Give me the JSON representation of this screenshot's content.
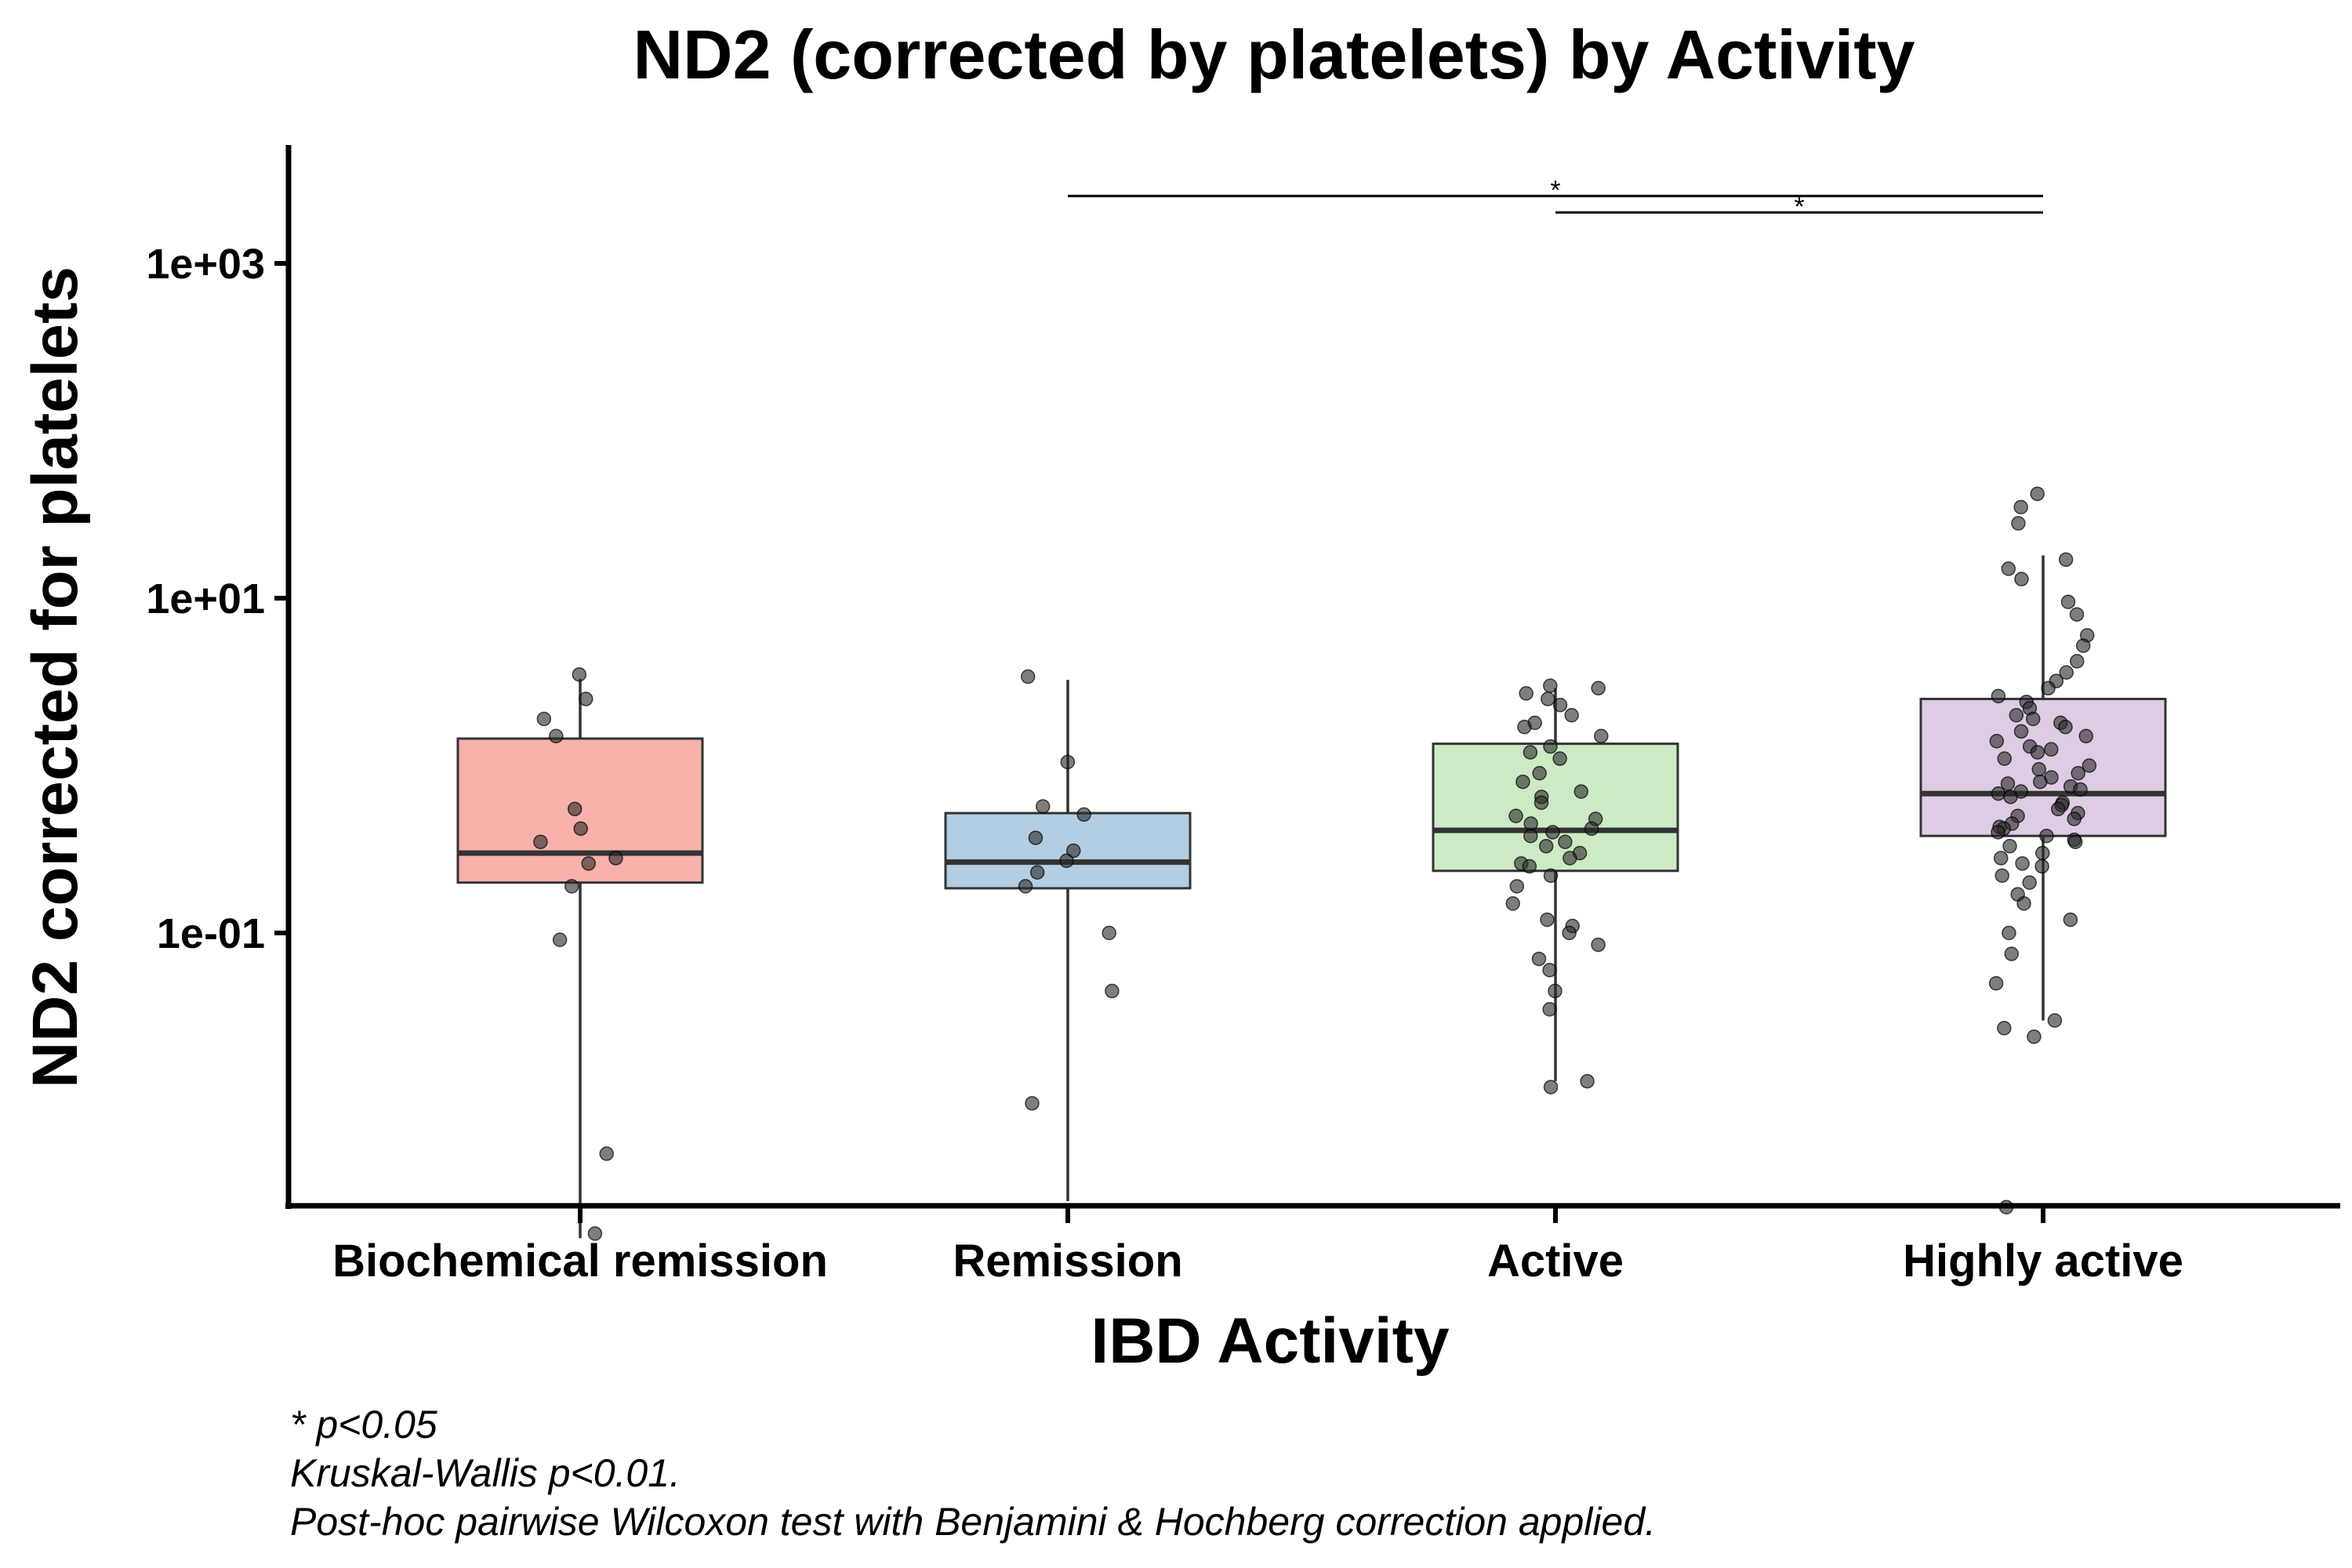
{
  "chart_data": {
    "type": "box",
    "title": "ND2 (corrected by platelets) by Activity",
    "xlabel": "IBD Activity",
    "ylabel": "ND2 corrected for platelets",
    "y_scale": "log10",
    "ylim": [
      0.0004,
      5000
    ],
    "y_ticks": [
      0.1,
      10,
      1000
    ],
    "y_tick_labels": [
      "1e-01",
      "1e+01",
      "1e+03"
    ],
    "grid": false,
    "legend": "none",
    "categories": [
      "Biochemical remission",
      "Remission",
      "Active",
      "Highly active"
    ],
    "colors": [
      "#f8b1ab",
      "#b3cde3",
      "#ccebc5",
      "#decbe4"
    ],
    "series": [
      {
        "box": {
          "whisker_low": 0.0015,
          "q1": 0.2,
          "median": 0.3,
          "q3": 1.45,
          "whisker_high": 3.3
        },
        "points": [
          3.5,
          2.5,
          1.9,
          1.5,
          0.55,
          0.42,
          0.35,
          0.28,
          0.26,
          0.19,
          0.091,
          0.0048,
          0.0016
        ]
      },
      {
        "box": {
          "whisker_low": 0.0025,
          "q1": 0.185,
          "median": 0.265,
          "q3": 0.52,
          "whisker_high": 3.25
        },
        "points": [
          3.4,
          1.05,
          0.57,
          0.51,
          0.37,
          0.31,
          0.27,
          0.23,
          0.19,
          0.1,
          0.045,
          0.0096
        ]
      },
      {
        "box": {
          "whisker_low": 0.013,
          "q1": 0.235,
          "median": 0.41,
          "q3": 1.35,
          "whisker_high": 2.9
        },
        "points": [
          3.0,
          2.9,
          2.7,
          2.5,
          2.3,
          2.0,
          1.8,
          1.7,
          1.5,
          1.3,
          1.2,
          1.1,
          0.9,
          0.8,
          0.7,
          0.65,
          0.6,
          0.5,
          0.48,
          0.45,
          0.42,
          0.4,
          0.38,
          0.35,
          0.33,
          0.3,
          0.28,
          0.26,
          0.25,
          0.22,
          0.19,
          0.15,
          0.12,
          0.11,
          0.1,
          0.085,
          0.07,
          0.06,
          0.045,
          0.035,
          0.013,
          0.012
        ]
      },
      {
        "box": {
          "whisker_low": 0.03,
          "q1": 0.38,
          "median": 0.68,
          "q3": 2.5,
          "whisker_high": 18
        },
        "points": [
          42,
          35,
          28,
          17,
          15,
          13,
          9.5,
          8,
          6,
          5.2,
          4.2,
          3.6,
          3.2,
          2.9,
          2.6,
          2.4,
          2.2,
          2.0,
          1.9,
          1.8,
          1.7,
          1.6,
          1.5,
          1.4,
          1.3,
          1.25,
          1.2,
          1.1,
          1.0,
          0.95,
          0.9,
          0.85,
          0.8,
          0.78,
          0.75,
          0.72,
          0.7,
          0.68,
          0.65,
          0.6,
          0.58,
          0.55,
          0.52,
          0.5,
          0.48,
          0.45,
          0.43,
          0.42,
          0.4,
          0.38,
          0.36,
          0.35,
          0.33,
          0.3,
          0.28,
          0.26,
          0.25,
          0.22,
          0.2,
          0.17,
          0.15,
          0.12,
          0.1,
          0.075,
          0.05,
          0.03,
          0.027,
          0.024,
          0.0023
        ]
      }
    ],
    "significance": [
      {
        "from": "Remission",
        "to": "Highly active",
        "label": "*"
      },
      {
        "from": "Active",
        "to": "Highly active",
        "label": "*"
      }
    ],
    "footnotes": [
      "* p<0.05",
      "Kruskal-Wallis p<0.01.",
      "Post-hoc pairwise Wilcoxon test with Benjamini & Hochberg correction applied."
    ]
  }
}
